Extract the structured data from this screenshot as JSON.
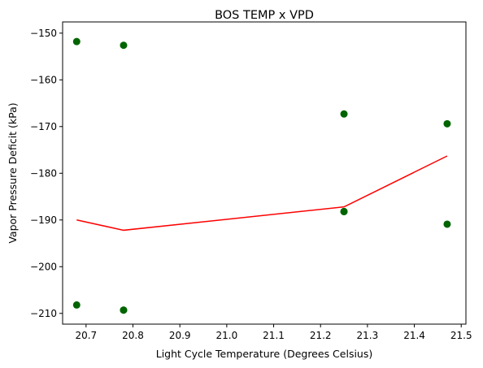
{
  "chart_data": {
    "type": "scatter",
    "title": "BOS TEMP x VPD",
    "xlabel": "Light Cycle Temperature (Degrees Celsius)",
    "ylabel": "Vapor Pressure Deficit (kPa)",
    "xlim": [
      20.65,
      21.51
    ],
    "ylim": [
      -212.3,
      -147.6
    ],
    "xticks": [
      20.7,
      20.8,
      20.9,
      21.0,
      21.1,
      21.2,
      21.3,
      21.4,
      21.5
    ],
    "xtick_labels": [
      "20.7",
      "20.8",
      "20.9",
      "21.0",
      "21.1",
      "21.2",
      "21.3",
      "21.4",
      "21.5"
    ],
    "yticks": [
      -150,
      -160,
      -170,
      -180,
      -190,
      -200,
      -210
    ],
    "ytick_labels": [
      "−150",
      "−160",
      "−170",
      "−180",
      "−190",
      "−200",
      "−210"
    ],
    "grid": false,
    "series": [
      {
        "kind": "scatter",
        "color": "#006400",
        "points": [
          {
            "x": 20.68,
            "y": -151.8
          },
          {
            "x": 20.68,
            "y": -208.2
          },
          {
            "x": 20.78,
            "y": -152.6
          },
          {
            "x": 20.78,
            "y": -209.3
          },
          {
            "x": 20.78,
            "y": -209.3
          },
          {
            "x": 21.25,
            "y": -167.3
          },
          {
            "x": 21.25,
            "y": -188.2
          },
          {
            "x": 21.25,
            "y": -188.2
          },
          {
            "x": 21.47,
            "y": -169.4
          },
          {
            "x": 21.47,
            "y": -190.9
          }
        ]
      },
      {
        "kind": "line",
        "color": "#ff0000",
        "points": [
          {
            "x": 20.68,
            "y": -190.0
          },
          {
            "x": 20.78,
            "y": -192.2
          },
          {
            "x": 21.25,
            "y": -187.2
          },
          {
            "x": 21.47,
            "y": -176.3
          }
        ]
      }
    ]
  }
}
